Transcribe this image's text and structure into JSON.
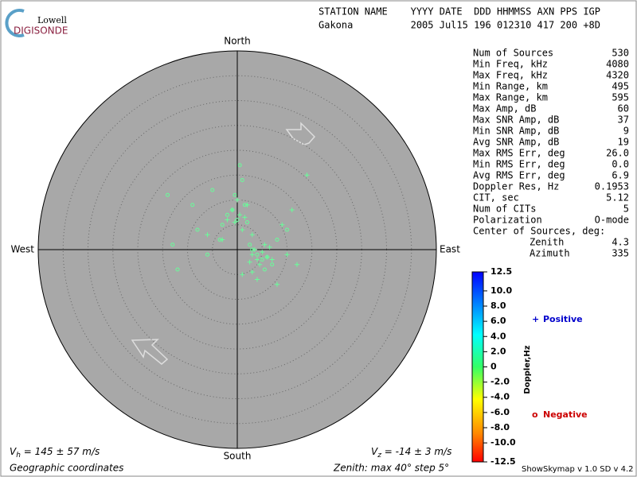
{
  "logo": {
    "top": "Lowell",
    "bottom": "DIGISONDE"
  },
  "header": {
    "labels": "STATION NAME    YYYY DATE  DDD HHMMSS AXN PPS IGP",
    "values": "Gakona          2005 Jul15 196 012310 417 200 +8D"
  },
  "stats": {
    "rows": [
      [
        "Num of Sources",
        "530"
      ],
      [
        "Min Freq, kHz",
        "4080"
      ],
      [
        "Max Freq, kHz",
        "4320"
      ],
      [
        "Min Range, km",
        "495"
      ],
      [
        "Max Range, km",
        "595"
      ],
      [
        "Max Amp, dB",
        "60"
      ],
      [
        "Max SNR Amp, dB",
        "37"
      ],
      [
        "Min SNR Amp, dB",
        "9"
      ],
      [
        "Avg SNR Amp, dB",
        "19"
      ],
      [
        "Max RMS Err, deg",
        "26.0"
      ],
      [
        "Min RMS Err, deg",
        "0.0"
      ],
      [
        "Avg RMS Err, deg",
        "6.9"
      ],
      [
        "Doppler Res, Hz",
        "0.1953"
      ],
      [
        "CIT, sec",
        "5.12"
      ],
      [
        "Num of CITs",
        "5"
      ],
      [
        "Polarization",
        "O-mode"
      ]
    ],
    "center_title": "Center of Sources, deg:",
    "center_rows": [
      [
        "Zenith",
        "4.3"
      ],
      [
        "Azimuth",
        "335"
      ]
    ]
  },
  "footer": {
    "vh": [
      "V",
      "h",
      " = 145 ± 57 m/s"
    ],
    "vz": [
      "V",
      "z",
      " = -14 ± 3 m/s"
    ],
    "coords": "Geographic coordinates",
    "zenith": "Zenith: max 40°  step 5°",
    "version": "ShowSkymap v 1.0  SD v 4.2"
  },
  "chart_data": {
    "type": "polar-scatter",
    "directions": {
      "north": "North",
      "south": "South",
      "east": "East",
      "west": "West"
    },
    "rlim": [
      0,
      40
    ],
    "rticks": [
      5,
      10,
      15,
      20,
      25,
      30,
      35
    ],
    "series": [
      {
        "name": "Positive",
        "marker": "+",
        "color": "#66ff99",
        "legend_color": "#0000cc",
        "x": [
          0.5,
          -1,
          1.5,
          -0.5,
          2,
          0,
          1,
          -2,
          3,
          4,
          5,
          3.5,
          4.5,
          6,
          2.5,
          5.5,
          7,
          3,
          4,
          9,
          11,
          14,
          -3,
          -6,
          8,
          12,
          1,
          6.5,
          3,
          10
        ],
        "y": [
          7,
          8,
          6.5,
          5.5,
          9,
          10,
          4,
          6,
          -1,
          -2,
          -0.5,
          0,
          -3,
          -1.5,
          -2.5,
          1,
          -2,
          -4.5,
          -6,
          5,
          8,
          15,
          2,
          3,
          -7,
          -3,
          -5,
          0.5,
          3,
          -1
        ]
      },
      {
        "name": "Negative",
        "marker": "o",
        "color": "#66ff99",
        "legend_color": "#cc0000",
        "x": [
          -1,
          0,
          1.5,
          -2,
          -3,
          2,
          -0.5,
          4,
          5,
          3,
          6,
          -5,
          -9,
          -14,
          -8,
          -13,
          8,
          0.5,
          -3.5,
          7,
          10,
          2.5,
          -6,
          -12,
          5.5,
          1
        ],
        "y": [
          8,
          6,
          9,
          7,
          5,
          5.5,
          11,
          -1,
          -2,
          0,
          -1.5,
          12,
          9,
          11,
          4,
          1,
          2,
          17,
          2,
          -3,
          4,
          1,
          -1,
          -4,
          -4,
          14
        ]
      }
    ],
    "colorbar": {
      "label": "Doppler,Hz",
      "lim": [
        -12.5,
        12.5
      ],
      "ticks": [
        12.5,
        {
          "value": 10,
          "label": "10.0"
        },
        {
          "value": 8,
          "label": "8.0"
        },
        {
          "value": 6,
          "label": "6.0"
        },
        {
          "value": 4,
          "label": "4.0"
        },
        {
          "value": 2,
          "label": "2.0"
        },
        0,
        {
          "value": -2,
          "label": "-2.0"
        },
        {
          "value": -4,
          "label": "-4.0"
        },
        {
          "value": -6,
          "label": "-6.0"
        },
        {
          "value": -8,
          "label": "-8.0"
        },
        {
          "value": -10,
          "label": "-10.0"
        },
        -12.5
      ]
    }
  }
}
